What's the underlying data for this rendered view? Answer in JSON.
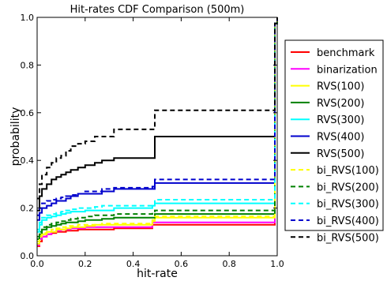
{
  "chart_data": {
    "type": "line",
    "title": "Hit-rates CDF Comparison (500m)",
    "xlabel": "hit-rate",
    "ylabel": "probability",
    "xlim": [
      0.0,
      1.0
    ],
    "ylim": [
      0.0,
      1.0
    ],
    "xticks": [
      "0.0",
      "0.2",
      "0.4",
      "0.6",
      "0.8",
      "1.0"
    ],
    "yticks": [
      "0.0",
      "0.2",
      "0.4",
      "0.6",
      "0.8",
      "1.0"
    ],
    "legend_position": "outside-right",
    "step_x": [
      0.0,
      0.01,
      0.02,
      0.04,
      0.06,
      0.08,
      0.1,
      0.12,
      0.14,
      0.17,
      0.2,
      0.24,
      0.27,
      0.32,
      0.48,
      0.49,
      0.98,
      0.99,
      1.0
    ],
    "series": [
      {
        "name": "benchmark",
        "color": "#ff0000",
        "dash": "solid",
        "y": [
          0.04,
          0.06,
          0.08,
          0.09,
          0.095,
          0.1,
          0.1,
          0.105,
          0.105,
          0.11,
          0.11,
          0.11,
          0.11,
          0.115,
          0.13,
          0.13,
          0.13,
          0.975,
          1.0
        ]
      },
      {
        "name": "binarization",
        "color": "#ff00ff",
        "dash": "solid",
        "y": [
          0.045,
          0.07,
          0.08,
          0.09,
          0.1,
          0.105,
          0.11,
          0.11,
          0.115,
          0.115,
          0.12,
          0.12,
          0.12,
          0.12,
          0.14,
          0.14,
          0.14,
          0.975,
          1.0
        ]
      },
      {
        "name": "RVS(100)",
        "color": "#ffff00",
        "dash": "solid",
        "y": [
          0.05,
          0.08,
          0.09,
          0.1,
          0.1,
          0.11,
          0.11,
          0.115,
          0.12,
          0.12,
          0.125,
          0.13,
          0.13,
          0.13,
          0.145,
          0.16,
          0.16,
          0.975,
          1.0
        ]
      },
      {
        "name": "RVS(200)",
        "color": "#008000",
        "dash": "solid",
        "y": [
          0.07,
          0.09,
          0.11,
          0.12,
          0.125,
          0.13,
          0.135,
          0.14,
          0.14,
          0.145,
          0.15,
          0.15,
          0.155,
          0.16,
          0.16,
          0.175,
          0.175,
          0.975,
          1.0
        ]
      },
      {
        "name": "RVS(300)",
        "color": "#00ffff",
        "dash": "solid",
        "y": [
          0.1,
          0.13,
          0.15,
          0.16,
          0.165,
          0.17,
          0.175,
          0.18,
          0.185,
          0.185,
          0.19,
          0.19,
          0.19,
          0.2,
          0.21,
          0.22,
          0.22,
          0.975,
          1.0
        ]
      },
      {
        "name": "RVS(400)",
        "color": "#0000cd",
        "dash": "solid",
        "y": [
          0.15,
          0.18,
          0.2,
          0.21,
          0.22,
          0.23,
          0.23,
          0.24,
          0.25,
          0.26,
          0.26,
          0.26,
          0.27,
          0.28,
          0.28,
          0.305,
          0.305,
          0.975,
          1.0
        ]
      },
      {
        "name": "RVS(500)",
        "color": "#000000",
        "dash": "solid",
        "y": [
          0.19,
          0.25,
          0.28,
          0.3,
          0.32,
          0.33,
          0.34,
          0.35,
          0.36,
          0.37,
          0.38,
          0.39,
          0.4,
          0.41,
          0.41,
          0.5,
          0.5,
          0.975,
          1.0
        ]
      },
      {
        "name": "bi_RVS(100)",
        "color": "#ffff00",
        "dash": "dashed",
        "y": [
          0.06,
          0.085,
          0.095,
          0.1,
          0.11,
          0.115,
          0.12,
          0.125,
          0.125,
          0.13,
          0.13,
          0.13,
          0.135,
          0.135,
          0.15,
          0.165,
          0.165,
          0.975,
          1.0
        ]
      },
      {
        "name": "bi_RVS(200)",
        "color": "#008000",
        "dash": "dashed",
        "y": [
          0.08,
          0.1,
          0.12,
          0.13,
          0.135,
          0.14,
          0.145,
          0.15,
          0.155,
          0.16,
          0.165,
          0.17,
          0.17,
          0.175,
          0.18,
          0.19,
          0.19,
          0.975,
          1.0
        ]
      },
      {
        "name": "bi_RVS(300)",
        "color": "#00ffff",
        "dash": "dashed",
        "y": [
          0.11,
          0.14,
          0.16,
          0.17,
          0.175,
          0.18,
          0.185,
          0.19,
          0.195,
          0.2,
          0.2,
          0.205,
          0.21,
          0.21,
          0.215,
          0.235,
          0.235,
          0.975,
          1.0
        ]
      },
      {
        "name": "bi_RVS(400)",
        "color": "#0000cd",
        "dash": "dashed",
        "y": [
          0.17,
          0.2,
          0.22,
          0.23,
          0.235,
          0.24,
          0.245,
          0.25,
          0.255,
          0.26,
          0.27,
          0.27,
          0.28,
          0.285,
          0.29,
          0.32,
          0.32,
          0.975,
          1.0
        ]
      },
      {
        "name": "bi_RVS(500)",
        "color": "#000000",
        "dash": "dashed",
        "y": [
          0.24,
          0.3,
          0.34,
          0.37,
          0.39,
          0.41,
          0.42,
          0.44,
          0.46,
          0.47,
          0.48,
          0.5,
          0.5,
          0.53,
          0.53,
          0.61,
          0.61,
          0.975,
          1.0
        ]
      }
    ]
  }
}
